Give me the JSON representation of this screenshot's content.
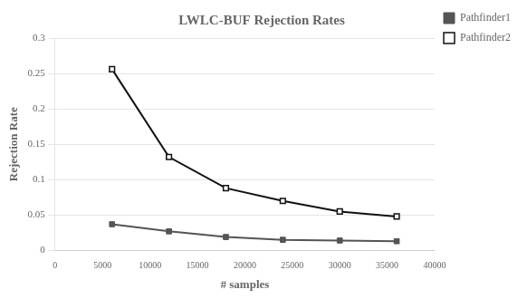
{
  "chart_data": {
    "type": "line",
    "title": "LWLC-BUF Rejection Rates",
    "xlabel": "# samples",
    "ylabel": "Rejection Rate",
    "xlim": [
      0,
      40000
    ],
    "ylim": [
      0,
      0.3
    ],
    "xticks": [
      0,
      5000,
      10000,
      15000,
      20000,
      25000,
      30000,
      35000,
      40000
    ],
    "yticks": [
      0,
      0.05,
      0.1,
      0.15,
      0.2,
      0.25,
      0.3
    ],
    "grid": "y",
    "legend": "upper right",
    "series": [
      {
        "name": "Pathfinder1",
        "color": "#555555",
        "marker": "square",
        "x": [
          6000,
          12000,
          18000,
          24000,
          30000,
          36000
        ],
        "values": [
          0.037,
          0.027,
          0.019,
          0.015,
          0.014,
          0.013
        ]
      },
      {
        "name": "Pathfinder2",
        "color": "#111111",
        "marker": "open_square",
        "x": [
          6000,
          12000,
          18000,
          24000,
          30000,
          36000
        ],
        "values": [
          0.256,
          0.132,
          0.088,
          0.07,
          0.055,
          0.048
        ]
      }
    ]
  }
}
